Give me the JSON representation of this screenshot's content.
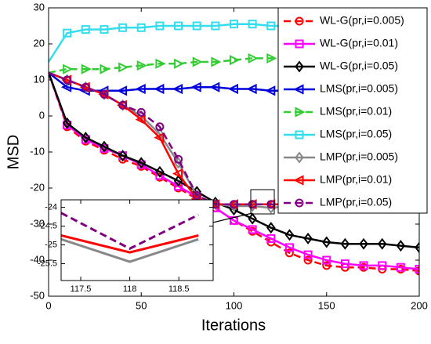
{
  "chart_data": [
    {
      "type": "line",
      "xlabel": "Iterations",
      "ylabel": "MSD",
      "x": [
        0,
        10,
        20,
        30,
        40,
        50,
        60,
        70,
        80,
        90,
        100,
        110,
        120,
        130,
        140,
        150,
        160,
        170,
        180,
        190,
        200
      ],
      "xlim": [
        0,
        200
      ],
      "xticks": [
        0,
        50,
        100,
        150,
        200
      ],
      "ylim": [
        -50,
        30
      ],
      "yticks": [
        -50,
        -40,
        -30,
        -20,
        -10,
        0,
        10,
        20,
        30
      ],
      "series": [
        {
          "name": "WL-G(pr,i=0.005)",
          "color": "#ff0000",
          "dash": true,
          "marker": "circle",
          "values": [
            12,
            -3,
            -7,
            -9.5,
            -12,
            -14,
            -17,
            -20,
            -23,
            -25.5,
            -29,
            -32,
            -35,
            -38,
            -40,
            -41.5,
            -42,
            -42,
            -42.5,
            -42.5,
            -43
          ]
        },
        {
          "name": "WL-G(pr,i=0.01)",
          "color": "#ff00ff",
          "dash": false,
          "marker": "square",
          "values": [
            12,
            -2.5,
            -6.5,
            -9,
            -11,
            -13.5,
            -16.5,
            -19.5,
            -22.5,
            -25.5,
            -29,
            -31.5,
            -34,
            -36.5,
            -38.5,
            -40,
            -41,
            -41.5,
            -41.5,
            -42,
            -42.5
          ]
        },
        {
          "name": "WL-G(pr,i=0.05)",
          "color": "#000000",
          "dash": false,
          "marker": "diamond",
          "values": [
            12,
            -2,
            -6,
            -8.5,
            -11,
            -13,
            -15.5,
            -18,
            -21,
            -24,
            -26,
            -28.5,
            -31,
            -33,
            -34,
            -35,
            -35.5,
            -35.5,
            -35.5,
            -36,
            -36.5
          ]
        },
        {
          "name": "LMS(pr,i=0.005)",
          "color": "#0000dd",
          "dash": false,
          "marker": "tri-left",
          "values": [
            12,
            8,
            7,
            7,
            7,
            7.5,
            7.5,
            7.5,
            8,
            8,
            7.5,
            7.5,
            7,
            7,
            7,
            7,
            7,
            7,
            7,
            7,
            7
          ]
        },
        {
          "name": "LMS(pr,i=0.01)",
          "color": "#33cc33",
          "dash": true,
          "marker": "tri-right",
          "values": [
            12,
            13,
            13,
            13,
            13.5,
            14,
            14.5,
            14.5,
            15,
            15,
            15.5,
            16,
            16,
            15.5,
            15.5,
            15,
            15,
            15,
            15,
            15,
            15
          ]
        },
        {
          "name": "LMS(pr,i=0.05)",
          "color": "#33ddee",
          "dash": false,
          "marker": "square",
          "values": [
            15,
            23,
            24,
            24,
            24.5,
            24.5,
            25,
            25,
            25,
            25,
            25.5,
            25.5,
            25,
            25,
            25,
            25,
            25,
            25,
            25,
            25,
            25
          ]
        },
        {
          "name": "LMP(pr,i=0.005)",
          "color": "#888888",
          "dash": false,
          "marker": "diamond",
          "values": [
            12,
            10,
            8,
            6,
            3,
            0,
            -5,
            -13,
            -22,
            -24.5,
            -25,
            -25,
            -25.5,
            -25,
            -25,
            -25,
            -25,
            -25,
            -25,
            -25,
            -25
          ]
        },
        {
          "name": "LMP(pr,i=0.01)",
          "color": "#ff0000",
          "dash": false,
          "marker": "tri-left",
          "values": [
            12,
            10,
            8,
            6,
            3,
            -1,
            -6,
            -16,
            -23,
            -24.5,
            -24.5,
            -24.5,
            -24.5,
            -24.5,
            -24.5,
            -24.5,
            -24.5,
            -24.5,
            -24.5,
            -24.5,
            -24.5
          ]
        },
        {
          "name": "LMP(pr,i=0.05)",
          "color": "#800080",
          "dash": true,
          "marker": "circle",
          "values": [
            12,
            10,
            8,
            6,
            3,
            1,
            -3,
            -12,
            -22,
            -24.5,
            -24.5,
            -24.5,
            -24.5,
            -24.5,
            -24.5,
            -24.5,
            -24.5,
            -24.5,
            -24.5,
            -24.5,
            -24.5
          ]
        }
      ]
    },
    {
      "type": "line",
      "x": [
        117.3,
        118,
        118.7
      ],
      "xlim": [
        117.3,
        118.85
      ],
      "xticks": [
        117.5,
        118,
        118.5
      ],
      "ylim": [
        -25.95,
        -23.8
      ],
      "yticks": [
        -24,
        -24.5,
        -25,
        -25.5
      ],
      "series": [
        {
          "color": "#888888",
          "dash": false,
          "values": [
            -24.85,
            -25.45,
            -24.85
          ]
        },
        {
          "color": "#ff0000",
          "dash": false,
          "values": [
            -24.75,
            -25.2,
            -24.75
          ]
        },
        {
          "color": "#800080",
          "dash": true,
          "values": [
            -24.15,
            -25.1,
            -24.2
          ]
        }
      ]
    }
  ]
}
